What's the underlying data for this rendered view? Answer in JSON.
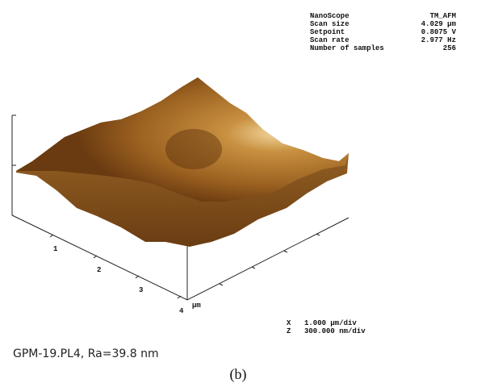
{
  "parameters": [
    [
      "NanoScope",
      "TM_AFM"
    ],
    [
      "Scan size",
      "4.029 µm"
    ],
    [
      "Setpoint",
      "0.8075 V"
    ],
    [
      "Scan rate",
      "2.977 Hz"
    ],
    [
      "Number of samples",
      "256"
    ]
  ],
  "axis_ticks": [
    "1",
    "2",
    "3",
    "4"
  ],
  "axis_unit": "µm",
  "scales": [
    [
      "X",
      "1.000 µm/div"
    ],
    [
      "Z",
      "300.000 nm/div"
    ]
  ],
  "caption": "GPM-19.PL4, Ra=39.8 nm",
  "panel_label": "(b)"
}
